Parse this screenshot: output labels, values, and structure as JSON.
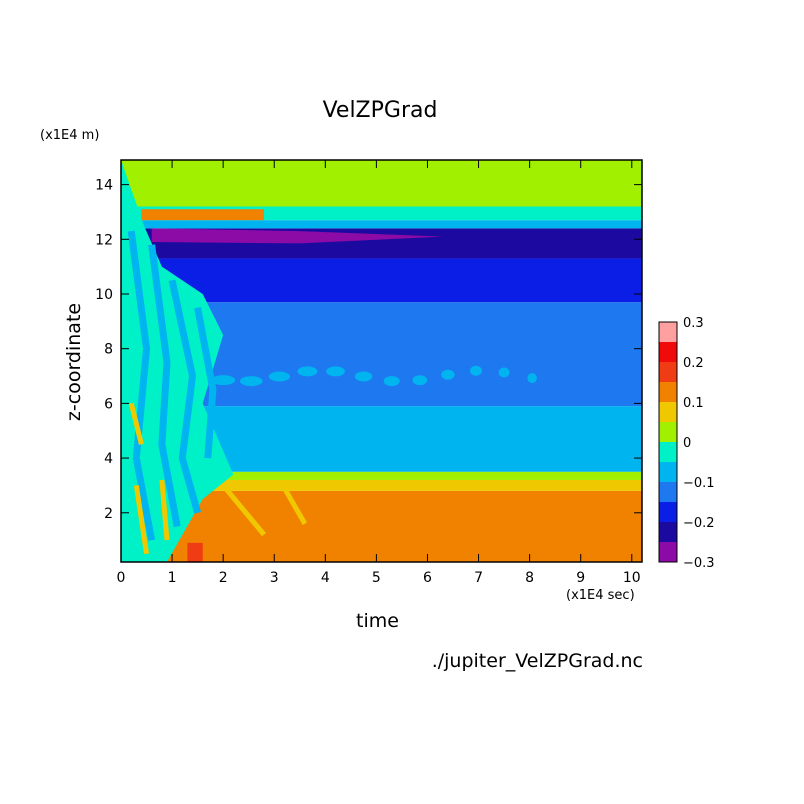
{
  "chart_data": {
    "type": "heatmap",
    "title": "VelZPGrad",
    "xlabel": "time",
    "ylabel": "z-coordinate",
    "x_unit": "(x1E4 sec)",
    "y_unit": "(x1E4 m)",
    "filename": "./jupiter_VelZPGrad.nc",
    "xlim": [
      0,
      10.2
    ],
    "ylim": [
      0.2,
      14.9
    ],
    "x_ticks": [
      0,
      1,
      2,
      3,
      4,
      5,
      6,
      7,
      8,
      9,
      10
    ],
    "y_ticks": [
      2,
      4,
      6,
      8,
      10,
      12,
      14
    ],
    "colorbar": {
      "levels": [
        -0.3,
        -0.25,
        -0.2,
        -0.15,
        -0.1,
        -0.05,
        0,
        0.05,
        0.1,
        0.15,
        0.2,
        0.25,
        0.3
      ],
      "labels": [
        "0.3",
        "0.2",
        "0.1",
        "0",
        "−0.1",
        "−0.2",
        "−0.3"
      ],
      "label_values": [
        0.3,
        0.2,
        0.1,
        0,
        -0.1,
        -0.2,
        -0.3
      ],
      "colors": [
        "#8c0aa5",
        "#1c0aa0",
        "#0a1ee6",
        "#1e78f0",
        "#00b4f0",
        "#00f0c8",
        "#a0f000",
        "#f0c800",
        "#f08200",
        "#f03c14",
        "#f00a0a",
        "#ffa0a0"
      ]
    },
    "bands": [
      {
        "z": [
          0.2,
          2.8
        ],
        "value": 0.125
      },
      {
        "z": [
          2.8,
          3.2
        ],
        "value": 0.075
      },
      {
        "z": [
          3.2,
          3.5
        ],
        "value": 0.025
      },
      {
        "z": [
          3.5,
          5.9
        ],
        "value": -0.075
      },
      {
        "z": [
          5.9,
          9.7
        ],
        "value": -0.125
      },
      {
        "z": [
          9.7,
          11.3
        ],
        "value": -0.175
      },
      {
        "z": [
          11.3,
          12.4
        ],
        "value": -0.225
      },
      {
        "z": [
          12.4,
          12.7
        ],
        "value": -0.075
      },
      {
        "z": [
          12.7,
          13.2
        ],
        "value": -0.025
      },
      {
        "z": [
          13.2,
          14.9
        ],
        "value": 0.025
      }
    ],
    "features": [
      {
        "name": "purple-core",
        "x": [
          0.6,
          6.3
        ],
        "z": [
          11.85,
          12.4
        ],
        "value": -0.275
      },
      {
        "name": "orange-top-streak",
        "x": [
          0.4,
          2.8
        ],
        "z": [
          12.7,
          13.1
        ],
        "value": 0.125
      },
      {
        "name": "cyan-mid-streaks",
        "x": [
          2.0,
          8.2
        ],
        "z": [
          6.6,
          7.4
        ],
        "value": -0.075
      },
      {
        "name": "red-bottom-spot",
        "x": [
          1.3,
          1.6
        ],
        "z": [
          0.2,
          0.9
        ],
        "value": 0.175
      },
      {
        "name": "yellow-transient",
        "x": [
          0.2,
          3.6
        ],
        "z": [
          0.5,
          3.0
        ],
        "value": 0.075
      }
    ]
  }
}
